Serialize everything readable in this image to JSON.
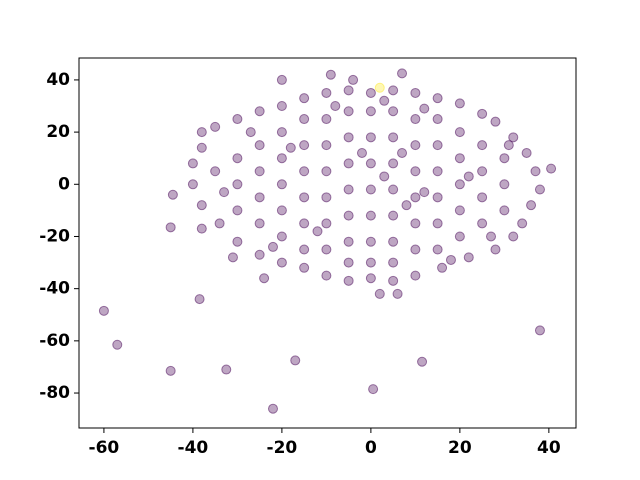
{
  "chart_data": {
    "type": "scatter",
    "xlim": [
      -65.6,
      46.1
    ],
    "ylim": [
      -93.4,
      48.4
    ],
    "xticks": [
      -60,
      -40,
      -20,
      0,
      20,
      40
    ],
    "yticks": [
      40,
      20,
      0,
      -20,
      -40,
      -60,
      -80
    ],
    "series": [
      {
        "color": "#440154",
        "x": [
          -38,
          -35,
          -30,
          -25,
          -20,
          -15,
          -10,
          -5,
          0,
          5,
          10,
          15,
          20,
          25,
          28,
          32,
          35,
          37,
          38,
          36,
          34,
          32,
          28,
          22,
          16,
          10,
          5,
          0,
          -5,
          -10,
          -15,
          -20,
          -25,
          -30,
          -34,
          -38,
          -40,
          -40,
          -38,
          -30,
          -30,
          -30,
          -25,
          -25,
          -25,
          -25,
          -20,
          -20,
          -20,
          -20,
          -20,
          -15,
          -15,
          -15,
          -15,
          -15,
          -15,
          -10,
          -10,
          -10,
          -10,
          -10,
          -10,
          -5,
          -5,
          -5,
          -5,
          -5,
          -5,
          -5,
          0,
          0,
          0,
          0,
          0,
          0,
          0,
          5,
          5,
          5,
          5,
          5,
          5,
          5,
          10,
          10,
          10,
          10,
          10,
          10,
          15,
          15,
          15,
          15,
          15,
          15,
          20,
          20,
          20,
          20,
          20,
          25,
          25,
          25,
          25,
          30,
          30,
          30,
          -27,
          -22,
          -8,
          3,
          12,
          18,
          27,
          31,
          -33,
          -35,
          7,
          3,
          8,
          -2,
          -12,
          12,
          22,
          -18,
          -45,
          -44.5,
          -38,
          40.5,
          -20,
          -9,
          7,
          -4,
          2,
          6,
          -24,
          -31,
          -60,
          -57,
          -45,
          -38.5,
          -32.5,
          -17,
          -22,
          0.5,
          11.5,
          38
        ],
        "y": [
          20,
          22,
          25,
          28,
          30,
          33,
          35,
          36,
          35,
          36,
          35,
          33,
          31,
          27,
          24,
          18,
          12,
          5,
          -2,
          -8,
          -15,
          -20,
          -25,
          -28,
          -32,
          -35,
          -37,
          -36,
          -37,
          -35,
          -32,
          -30,
          -27,
          -22,
          -15,
          -8,
          0,
          8,
          14,
          10,
          0,
          -10,
          15,
          5,
          -5,
          -15,
          20,
          10,
          0,
          -10,
          -20,
          25,
          15,
          5,
          -5,
          -15,
          -25,
          25,
          15,
          5,
          -5,
          -15,
          -25,
          28,
          18,
          8,
          -2,
          -12,
          -22,
          -30,
          28,
          18,
          8,
          -2,
          -12,
          -22,
          -30,
          28,
          18,
          8,
          -2,
          -12,
          -22,
          -30,
          25,
          15,
          5,
          -5,
          -15,
          -25,
          25,
          15,
          5,
          -5,
          -15,
          -25,
          20,
          10,
          0,
          -10,
          -20,
          15,
          5,
          -5,
          -15,
          10,
          0,
          -10,
          20,
          -24,
          30,
          32,
          29,
          -29,
          -20,
          15,
          -3,
          5,
          12,
          3,
          -8,
          12,
          -18,
          -3,
          3,
          14,
          -16.5,
          -4,
          -17,
          6,
          40,
          42,
          42.5,
          40,
          -42,
          -42,
          -36,
          -28,
          -48.5,
          -61.5,
          -71.5,
          -44,
          -71,
          -67.5,
          -86,
          -78.5,
          -68,
          -56
        ]
      },
      {
        "color": "#fde725",
        "x": [
          2
        ],
        "y": [
          37
        ]
      }
    ]
  }
}
